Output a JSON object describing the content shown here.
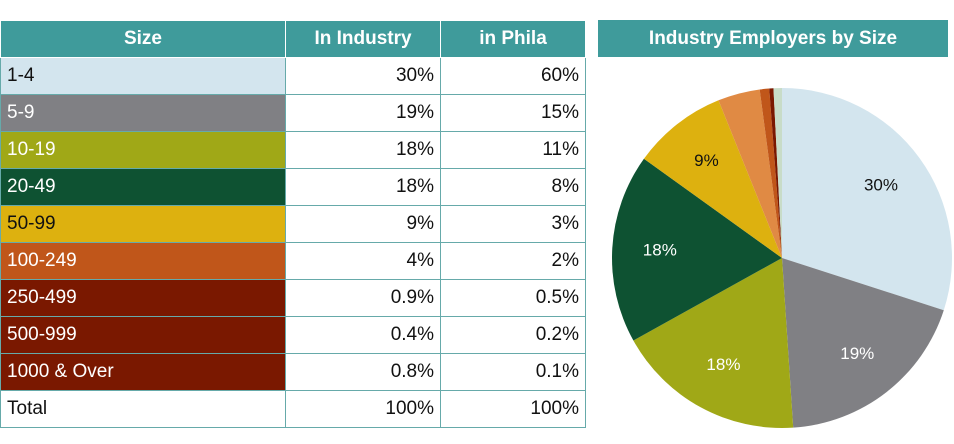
{
  "table": {
    "header": [
      "Size",
      "In Industry",
      "in Phila"
    ],
    "rows": [
      [
        "1-4",
        "30%",
        "60%"
      ],
      [
        "5-9",
        "19%",
        "15%"
      ],
      [
        "10-19",
        "18%",
        "11%"
      ],
      [
        "20-49",
        "18%",
        "8%"
      ],
      [
        "50-99",
        "9%",
        "3%"
      ],
      [
        "100-249",
        "4%",
        "2%"
      ],
      [
        "250-499",
        "0.9%",
        "0.5%"
      ],
      [
        "500-999",
        "0.4%",
        "0.2%"
      ],
      [
        "1000 & Over",
        "0.8%",
        "0.1%"
      ],
      [
        "Total",
        "100%",
        "100%"
      ]
    ],
    "row_colors": [
      "#d3e5ee",
      "#808084",
      "#a0a817",
      "#0e5232",
      "#ddb10f",
      "#c0561a",
      "#7a1800",
      "#7a1800",
      "#7a1800",
      "#ffffff"
    ],
    "row_text_colors": [
      "#111111",
      "#ffffff",
      "#ffffff",
      "#ffffff",
      "#111111",
      "#ffffff",
      "#ffffff",
      "#ffffff",
      "#ffffff",
      "#111111"
    ]
  },
  "chart_data": {
    "type": "pie",
    "title": "Industry Employers by Size",
    "values": [
      30,
      19,
      18,
      18,
      9,
      4,
      0.9,
      0.4,
      0.8
    ],
    "value_labels": [
      "30%",
      "19%",
      "18%",
      "18%",
      "9%",
      null,
      null,
      null,
      null
    ],
    "colors": [
      "#d3e5ee",
      "#808084",
      "#a0a817",
      "#0e5232",
      "#ddb10f",
      "#e08a44",
      "#c0561a",
      "#7a1800",
      "#c8dcc8"
    ],
    "label_colors": [
      "#111111",
      "#ffffff",
      "#ffffff",
      "#ffffff",
      "#111111",
      "#ffffff",
      "#ffffff",
      "#ffffff",
      "#ffffff"
    ]
  }
}
